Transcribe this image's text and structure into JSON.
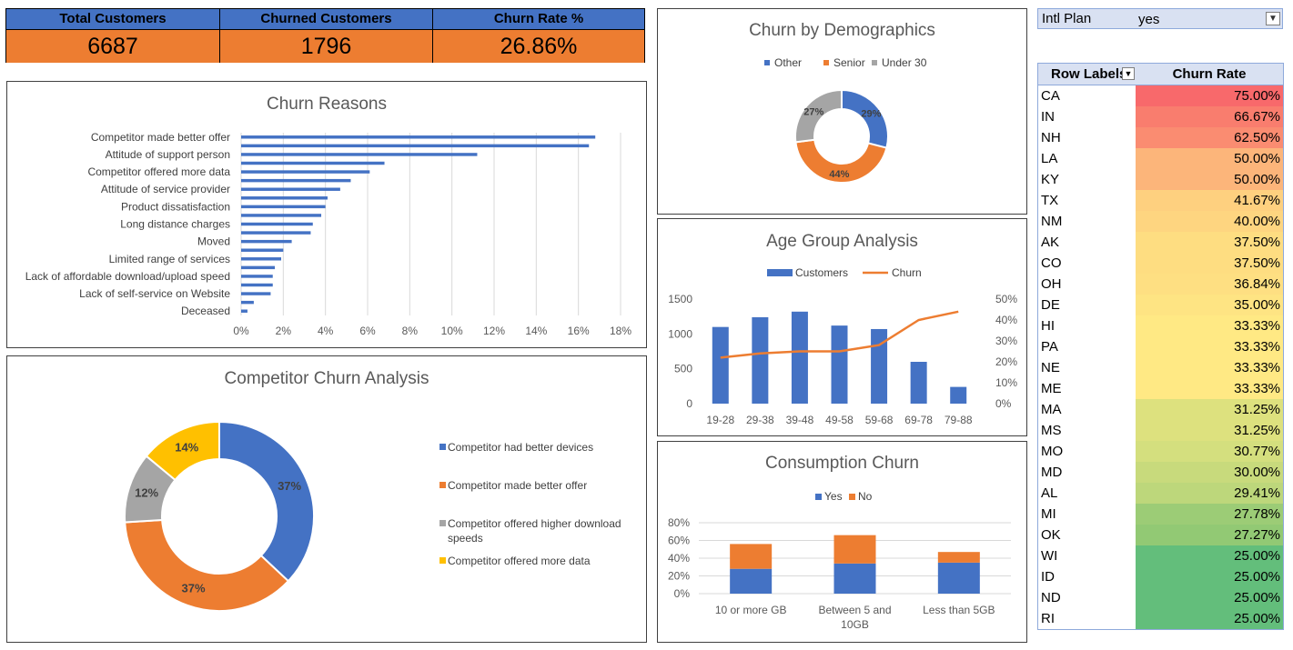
{
  "kpi": {
    "total_customers_label": "Total Customers",
    "total_customers_value": "6687",
    "churned_label": "Churned Customers",
    "churned_value": "1796",
    "rate_label": "Churn Rate %",
    "rate_value": "26.86%"
  },
  "filter": {
    "label": "Intl Plan",
    "value": "yes"
  },
  "pivot": {
    "header_row_labels": "Row Labels",
    "header_churn_rate": "Churn Rate",
    "rows": [
      {
        "state": "CA",
        "rate": "75.00%",
        "color": "#f8696b"
      },
      {
        "state": "IN",
        "rate": "66.67%",
        "color": "#f97d6e"
      },
      {
        "state": "NH",
        "rate": "62.50%",
        "color": "#fa8c71"
      },
      {
        "state": "LA",
        "rate": "50.00%",
        "color": "#fcb57a"
      },
      {
        "state": "KY",
        "rate": "50.00%",
        "color": "#fcb57a"
      },
      {
        "state": "TX",
        "rate": "41.67%",
        "color": "#fed07f"
      },
      {
        "state": "NM",
        "rate": "40.00%",
        "color": "#fed580"
      },
      {
        "state": "AK",
        "rate": "37.50%",
        "color": "#fedd81"
      },
      {
        "state": "CO",
        "rate": "37.50%",
        "color": "#fedd81"
      },
      {
        "state": "OH",
        "rate": "36.84%",
        "color": "#fedf82"
      },
      {
        "state": "DE",
        "rate": "35.00%",
        "color": "#fee483"
      },
      {
        "state": "HI",
        "rate": "33.33%",
        "color": "#ffe984"
      },
      {
        "state": "PA",
        "rate": "33.33%",
        "color": "#ffe984"
      },
      {
        "state": "NE",
        "rate": "33.33%",
        "color": "#ffe984"
      },
      {
        "state": "ME",
        "rate": "33.33%",
        "color": "#ffe984"
      },
      {
        "state": "MA",
        "rate": "31.25%",
        "color": "#dde17e"
      },
      {
        "state": "MS",
        "rate": "31.25%",
        "color": "#dde17e"
      },
      {
        "state": "MO",
        "rate": "30.77%",
        "color": "#d4df7e"
      },
      {
        "state": "MD",
        "rate": "30.00%",
        "color": "#c8da7c"
      },
      {
        "state": "AL",
        "rate": "29.41%",
        "color": "#bdd77b"
      },
      {
        "state": "MI",
        "rate": "27.78%",
        "color": "#9ccc76"
      },
      {
        "state": "OK",
        "rate": "27.27%",
        "color": "#92c974"
      },
      {
        "state": "WI",
        "rate": "25.00%",
        "color": "#63be7b"
      },
      {
        "state": "ID",
        "rate": "25.00%",
        "color": "#63be7b"
      },
      {
        "state": "ND",
        "rate": "25.00%",
        "color": "#63be7b"
      },
      {
        "state": "RI",
        "rate": "25.00%",
        "color": "#63be7b"
      }
    ]
  },
  "chart_data": [
    {
      "id": "churn_reasons",
      "type": "bar",
      "orientation": "horizontal",
      "title": "Churn Reasons",
      "labels_shown": [
        "Competitor made better offer",
        "Attitude of support person",
        "Competitor offered more data",
        "Attitude of service provider",
        "Product dissatisfaction",
        "Long distance charges",
        "Moved",
        "Limited range of services",
        "Lack of affordable download/upload speed",
        "Lack of self-service on Website",
        "Deceased"
      ],
      "values": [
        16.8,
        16.5,
        11.2,
        6.8,
        6.1,
        5.2,
        4.7,
        4.1,
        4.0,
        3.8,
        3.4,
        3.3,
        2.4,
        2.0,
        1.9,
        1.6,
        1.5,
        1.5,
        1.4,
        0.6,
        0.3
      ],
      "x_ticks": [
        "0%",
        "2%",
        "4%",
        "6%",
        "8%",
        "10%",
        "12%",
        "14%",
        "16%",
        "18%"
      ],
      "xlim": [
        0,
        18
      ],
      "color": "#4472c4"
    },
    {
      "id": "competitor_churn",
      "type": "pie",
      "donut": true,
      "title": "Competitor Churn Analysis",
      "labels": [
        "Competitor had better devices",
        "Competitor made better offer",
        "Competitor offered higher download speeds",
        "Competitor offered more data"
      ],
      "values": [
        37,
        37,
        12,
        14
      ],
      "data_labels": [
        "37%",
        "37%",
        "12%",
        "14%"
      ],
      "colors": [
        "#4472c4",
        "#ed7d31",
        "#a5a5a5",
        "#ffc000"
      ]
    },
    {
      "id": "churn_demographics",
      "type": "pie",
      "donut": true,
      "title": "Churn by Demographics",
      "labels": [
        "Other",
        "Senior",
        "Under 30"
      ],
      "values": [
        29,
        44,
        27
      ],
      "data_labels": [
        "29%",
        "44%",
        "27%"
      ],
      "colors": [
        "#4472c4",
        "#ed7d31",
        "#a5a5a5"
      ]
    },
    {
      "id": "age_group",
      "type": "bar",
      "title": "Age Group Analysis",
      "categories": [
        "19-28",
        "29-38",
        "39-48",
        "49-58",
        "59-68",
        "69-78",
        "79-88"
      ],
      "series": [
        {
          "name": "Customers",
          "kind": "bar",
          "axis": "left",
          "values": [
            1100,
            1240,
            1320,
            1120,
            1070,
            600,
            240
          ],
          "color": "#4472c4"
        },
        {
          "name": "Churn",
          "kind": "line",
          "axis": "right",
          "values": [
            22,
            24,
            25,
            25,
            28,
            40,
            44
          ],
          "color": "#ed7d31"
        }
      ],
      "left_ticks": [
        "0",
        "500",
        "1000",
        "1500"
      ],
      "left_lim": [
        0,
        1500
      ],
      "right_ticks": [
        "0%",
        "10%",
        "20%",
        "30%",
        "40%",
        "50%"
      ],
      "right_lim": [
        0,
        50
      ]
    },
    {
      "id": "consumption_churn",
      "type": "bar",
      "stacked": true,
      "title": "Consumption Churn",
      "categories": [
        "10 or more GB",
        "Between 5 and 10GB",
        "Less than 5GB"
      ],
      "series": [
        {
          "name": "Yes",
          "values": [
            28,
            34,
            35
          ],
          "color": "#4472c4"
        },
        {
          "name": "No",
          "values": [
            28,
            32,
            12
          ],
          "color": "#ed7d31"
        }
      ],
      "y_ticks": [
        "0%",
        "20%",
        "40%",
        "60%",
        "80%"
      ],
      "ylim": [
        0,
        80
      ]
    }
  ]
}
